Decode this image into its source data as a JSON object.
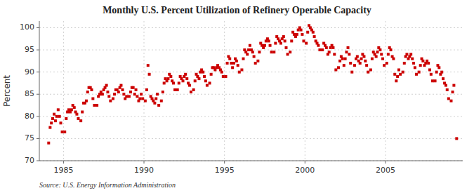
{
  "chart_data": {
    "type": "scatter",
    "title": "Monthly U.S. Percent Utilization of Refinery Operable Capacity",
    "ylabel": "Percent",
    "annotations": [
      "Source: U.S. Energy Information Administration"
    ],
    "xlim": [
      1983.5,
      2009.8
    ],
    "ylim": [
      70,
      101.5
    ],
    "xticks": [
      1985,
      1990,
      1995,
      2000,
      2005
    ],
    "yticks": [
      70,
      75,
      80,
      85,
      90,
      95,
      100
    ],
    "grid": true,
    "color": "#cc0000",
    "marker": "square",
    "x": [
      1984.08,
      1984.17,
      1984.25,
      1984.33,
      1984.42,
      1984.5,
      1984.58,
      1984.67,
      1984.75,
      1984.83,
      1984.92,
      1985.08,
      1985.17,
      1985.25,
      1985.33,
      1985.42,
      1985.5,
      1985.58,
      1985.67,
      1985.75,
      1985.83,
      1985.92,
      1986.08,
      1986.17,
      1986.25,
      1986.33,
      1986.42,
      1986.5,
      1986.58,
      1986.67,
      1986.75,
      1986.83,
      1986.92,
      1987.08,
      1987.17,
      1987.25,
      1987.33,
      1987.42,
      1987.5,
      1987.58,
      1987.67,
      1987.75,
      1987.83,
      1987.92,
      1988.08,
      1988.17,
      1988.25,
      1988.33,
      1988.42,
      1988.5,
      1988.58,
      1988.67,
      1988.75,
      1988.83,
      1988.92,
      1989.08,
      1989.17,
      1989.25,
      1989.33,
      1989.42,
      1989.5,
      1989.58,
      1989.67,
      1989.75,
      1989.83,
      1989.92,
      1990.08,
      1990.17,
      1990.25,
      1990.33,
      1990.42,
      1990.5,
      1990.58,
      1990.67,
      1990.75,
      1990.83,
      1990.92,
      1991.08,
      1991.17,
      1991.25,
      1991.33,
      1991.42,
      1991.5,
      1991.58,
      1991.67,
      1991.75,
      1991.83,
      1991.92,
      1992.08,
      1992.17,
      1992.25,
      1992.33,
      1992.42,
      1992.5,
      1992.58,
      1992.67,
      1992.75,
      1992.83,
      1992.92,
      1993.08,
      1993.17,
      1993.25,
      1993.33,
      1993.42,
      1993.5,
      1993.58,
      1993.67,
      1993.75,
      1993.83,
      1993.92,
      1994.08,
      1994.17,
      1994.25,
      1994.33,
      1994.42,
      1994.5,
      1994.58,
      1994.67,
      1994.75,
      1994.83,
      1994.92,
      1995.08,
      1995.17,
      1995.25,
      1995.33,
      1995.42,
      1995.5,
      1995.58,
      1995.67,
      1995.75,
      1995.83,
      1995.92,
      1996.08,
      1996.17,
      1996.25,
      1996.33,
      1996.42,
      1996.5,
      1996.58,
      1996.67,
      1996.75,
      1996.83,
      1996.92,
      1997.08,
      1997.17,
      1997.25,
      1997.33,
      1997.42,
      1997.5,
      1997.58,
      1997.67,
      1997.75,
      1997.83,
      1997.92,
      1998.08,
      1998.17,
      1998.25,
      1998.33,
      1998.42,
      1998.5,
      1998.58,
      1998.67,
      1998.75,
      1998.83,
      1998.92,
      1999.08,
      1999.17,
      1999.25,
      1999.33,
      1999.42,
      1999.5,
      1999.58,
      1999.67,
      1999.75,
      1999.83,
      1999.92,
      2000.08,
      2000.17,
      2000.25,
      2000.33,
      2000.42,
      2000.5,
      2000.58,
      2000.67,
      2000.75,
      2000.83,
      2000.92,
      2001.08,
      2001.17,
      2001.25,
      2001.33,
      2001.42,
      2001.5,
      2001.58,
      2001.67,
      2001.75,
      2001.83,
      2001.92,
      2002.08,
      2002.17,
      2002.25,
      2002.33,
      2002.42,
      2002.5,
      2002.58,
      2002.67,
      2002.75,
      2002.83,
      2002.92,
      2003.08,
      2003.17,
      2003.25,
      2003.33,
      2003.42,
      2003.5,
      2003.58,
      2003.67,
      2003.75,
      2003.83,
      2003.92,
      2004.08,
      2004.17,
      2004.25,
      2004.33,
      2004.42,
      2004.5,
      2004.58,
      2004.67,
      2004.75,
      2004.83,
      2004.92,
      2005.08,
      2005.17,
      2005.25,
      2005.33,
      2005.42,
      2005.5,
      2005.58,
      2005.67,
      2005.75,
      2005.83,
      2005.92,
      2006.08,
      2006.17,
      2006.25,
      2006.33,
      2006.42,
      2006.5,
      2006.58,
      2006.67,
      2006.75,
      2006.83,
      2006.92,
      2007.08,
      2007.17,
      2007.25,
      2007.33,
      2007.42,
      2007.5,
      2007.58,
      2007.67,
      2007.75,
      2007.83,
      2007.92,
      2008.08,
      2008.17,
      2008.25,
      2008.33,
      2008.42,
      2008.5,
      2008.58,
      2008.67,
      2008.75,
      2008.83,
      2008.92,
      2009.08,
      2009.17,
      2009.25,
      2009.42
    ],
    "values": [
      74.0,
      77.5,
      78.5,
      79.5,
      80.5,
      79.0,
      80.0,
      81.5,
      80.0,
      78.5,
      76.5,
      76.5,
      79.5,
      81.0,
      81.5,
      81.0,
      81.5,
      82.5,
      82.0,
      81.0,
      80.5,
      79.5,
      79.0,
      81.0,
      83.0,
      83.0,
      83.5,
      85.5,
      86.5,
      86.5,
      86.0,
      84.0,
      82.5,
      82.5,
      84.5,
      85.0,
      85.5,
      85.0,
      86.0,
      86.5,
      87.0,
      85.5,
      84.5,
      83.5,
      84.0,
      85.0,
      86.0,
      86.0,
      85.5,
      86.5,
      87.0,
      86.0,
      85.0,
      84.0,
      84.5,
      84.5,
      85.5,
      86.5,
      86.5,
      85.0,
      86.0,
      84.5,
      83.5,
      84.0,
      85.0,
      84.0,
      83.5,
      86.0,
      91.5,
      89.5,
      84.5,
      84.0,
      83.5,
      83.0,
      84.0,
      85.0,
      82.5,
      83.5,
      85.5,
      87.5,
      88.5,
      88.0,
      88.5,
      89.5,
      89.0,
      88.0,
      87.5,
      86.0,
      86.0,
      87.5,
      89.0,
      88.5,
      88.0,
      89.0,
      89.5,
      88.5,
      87.5,
      87.0,
      85.5,
      86.0,
      88.0,
      89.5,
      89.0,
      88.5,
      90.0,
      90.5,
      90.0,
      89.0,
      88.0,
      87.0,
      87.5,
      89.5,
      91.0,
      91.0,
      90.5,
      91.0,
      91.5,
      91.0,
      90.5,
      90.0,
      89.0,
      89.0,
      92.0,
      93.5,
      93.0,
      92.0,
      91.0,
      92.0,
      93.0,
      92.5,
      91.5,
      90.0,
      90.5,
      93.0,
      95.0,
      94.5,
      94.0,
      95.0,
      96.0,
      95.0,
      94.5,
      93.5,
      92.0,
      92.5,
      94.5,
      96.5,
      96.0,
      95.5,
      96.0,
      97.0,
      97.5,
      97.0,
      96.0,
      94.5,
      94.5,
      96.5,
      98.0,
      97.5,
      97.0,
      96.5,
      97.5,
      98.0,
      97.0,
      95.5,
      94.0,
      94.5,
      97.0,
      99.0,
      98.5,
      98.0,
      98.5,
      99.5,
      100.0,
      99.5,
      98.5,
      97.0,
      96.5,
      99.0,
      100.5,
      100.0,
      99.5,
      99.0,
      98.0,
      97.0,
      96.5,
      96.0,
      95.0,
      95.0,
      96.5,
      96.0,
      95.5,
      94.0,
      94.5,
      95.5,
      96.0,
      95.5,
      94.0,
      90.5,
      91.0,
      92.5,
      93.5,
      93.0,
      91.5,
      93.0,
      94.5,
      95.5,
      94.0,
      92.0,
      90.0,
      91.5,
      93.0,
      93.5,
      92.5,
      92.0,
      93.0,
      94.0,
      93.5,
      92.5,
      91.5,
      90.0,
      90.5,
      93.0,
      94.5,
      94.0,
      93.5,
      94.5,
      95.5,
      95.0,
      94.0,
      93.0,
      91.5,
      92.0,
      94.0,
      95.5,
      95.0,
      93.5,
      93.0,
      89.5,
      88.0,
      89.0,
      90.5,
      89.5,
      90.0,
      92.0,
      93.5,
      94.0,
      93.0,
      93.5,
      94.0,
      93.0,
      92.0,
      91.0,
      89.5,
      90.0,
      91.5,
      93.0,
      92.5,
      91.5,
      92.0,
      92.5,
      92.0,
      90.5,
      89.5,
      88.0,
      88.0,
      90.0,
      91.5,
      91.0,
      89.5,
      90.0,
      88.5,
      87.5,
      87.0,
      86.0,
      84.0,
      83.5,
      85.5,
      87.0,
      75.0
    ]
  }
}
